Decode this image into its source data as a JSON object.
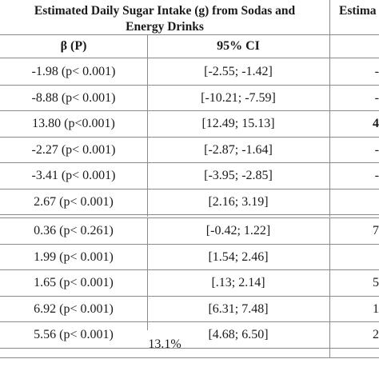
{
  "table": {
    "group_header": "Estimated Daily Sugar Intake (g) from Sodas and Energy Drinks",
    "group_header_line1": "Estimated Daily Sugar Intake (g) from Sodas and",
    "group_header_line2": "Energy Drinks",
    "next_group_header_partial": "Estima",
    "col_beta": "β (P)",
    "col_ci": "95% CI",
    "section1_rows": [
      {
        "beta": "-1.98 (p< 0.001)",
        "ci": "[-2.55; -1.42]",
        "next": "-"
      },
      {
        "beta": "-8.88 (p< 0.001)",
        "ci": "[-10.21; -7.59]",
        "next": "-"
      },
      {
        "beta": "13.80 (p<0.001)",
        "ci": "[12.49; 15.13]",
        "next": "4"
      },
      {
        "beta": "-2.27 (p< 0.001)",
        "ci": "[-2.87; -1.64]",
        "next": "-"
      },
      {
        "beta": "-3.41 (p< 0.001)",
        "ci": "[-3.95; -2.85]",
        "next": "-"
      },
      {
        "beta": "2.67 (p< 0.001)",
        "ci": "[2.16; 3.19]",
        "next": ""
      }
    ],
    "section2_rows": [
      {
        "beta": "0.36 (p< 0.261)",
        "ci": "[-0.42; 1.22]",
        "next": "7"
      },
      {
        "beta": "1.99 (p< 0.001)",
        "ci": "[1.54; 2.46]",
        "next": ""
      },
      {
        "beta": "1.65 (p< 0.001)",
        "ci": "[.13; 2.14]",
        "next": "5"
      },
      {
        "beta": "6.92 (p< 0.001)",
        "ci": "[6.31; 7.48]",
        "next": "1"
      },
      {
        "beta": "5.56 (p< 0.001)",
        "ci": "[4.68; 6.50]",
        "next": "2"
      }
    ],
    "footer_value": "13.1%"
  }
}
